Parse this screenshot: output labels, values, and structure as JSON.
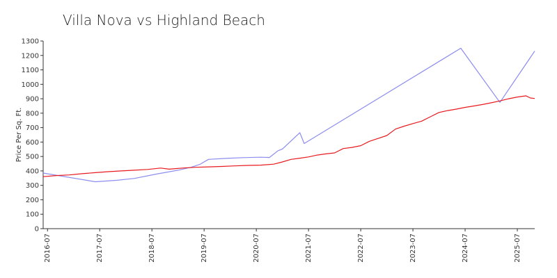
{
  "chart_data": {
    "type": "line",
    "title": "Villa Nova vs Highland Beach",
    "xlabel": "",
    "ylabel": "Price Per Sq. Ft.",
    "ylim": [
      0,
      1300
    ],
    "yticks": [
      0,
      100,
      200,
      300,
      400,
      500,
      600,
      700,
      800,
      900,
      1000,
      1100,
      1200,
      1300
    ],
    "xlim": [
      "2016-06",
      "2025-11"
    ],
    "xticks": [
      "2016-07",
      "2017-07",
      "2018-07",
      "2019-07",
      "2020-07",
      "2021-07",
      "2022-07",
      "2023-07",
      "2024-07",
      "2025-07"
    ],
    "grid": false,
    "legend": "none",
    "series": [
      {
        "color": "#8c8cf0",
        "points": [
          [
            "2016-06",
            385
          ],
          [
            "2017-06",
            325
          ],
          [
            "2017-11",
            335
          ],
          [
            "2018-03",
            348
          ],
          [
            "2018-08",
            378
          ],
          [
            "2019-01",
            405
          ],
          [
            "2019-04",
            425
          ],
          [
            "2019-06",
            445
          ],
          [
            "2019-08",
            480
          ],
          [
            "2019-12",
            487
          ],
          [
            "2020-04",
            492
          ],
          [
            "2020-08",
            495
          ],
          [
            "2020-10",
            493
          ],
          [
            "2020-12",
            540
          ],
          [
            "2021-01",
            552
          ],
          [
            "2021-05",
            665
          ],
          [
            "2021-06",
            590
          ],
          [
            "2024-06",
            1250
          ],
          [
            "2025-03",
            875
          ],
          [
            "2025-11",
            1230
          ]
        ]
      },
      {
        "color": "#e8191e",
        "points": [
          [
            "2016-06",
            360
          ],
          [
            "2016-09",
            368
          ],
          [
            "2016-12",
            372
          ],
          [
            "2017-03",
            381
          ],
          [
            "2017-06",
            388
          ],
          [
            "2017-09",
            395
          ],
          [
            "2017-12",
            400
          ],
          [
            "2018-03",
            405
          ],
          [
            "2018-06",
            410
          ],
          [
            "2018-09",
            420
          ],
          [
            "2018-11",
            412
          ],
          [
            "2019-02",
            420
          ],
          [
            "2019-05",
            425
          ],
          [
            "2019-08",
            428
          ],
          [
            "2019-11",
            431
          ],
          [
            "2020-02",
            435
          ],
          [
            "2020-05",
            438
          ],
          [
            "2020-08",
            440
          ],
          [
            "2020-11",
            447
          ],
          [
            "2021-01",
            462
          ],
          [
            "2021-03",
            480
          ],
          [
            "2021-05",
            488
          ],
          [
            "2021-07",
            497
          ],
          [
            "2021-09",
            510
          ],
          [
            "2021-11",
            518
          ],
          [
            "2022-01",
            525
          ],
          [
            "2022-03",
            555
          ],
          [
            "2022-05",
            563
          ],
          [
            "2022-07",
            575
          ],
          [
            "2022-09",
            605
          ],
          [
            "2022-11",
            625
          ],
          [
            "2023-01",
            645
          ],
          [
            "2023-03",
            690
          ],
          [
            "2023-05",
            710
          ],
          [
            "2023-07",
            728
          ],
          [
            "2023-09",
            745
          ],
          [
            "2023-11",
            775
          ],
          [
            "2024-01",
            805
          ],
          [
            "2024-03",
            818
          ],
          [
            "2024-05",
            828
          ],
          [
            "2024-07",
            840
          ],
          [
            "2024-09",
            850
          ],
          [
            "2024-11",
            860
          ],
          [
            "2025-01",
            872
          ],
          [
            "2025-03",
            885
          ],
          [
            "2025-05",
            900
          ],
          [
            "2025-07",
            912
          ],
          [
            "2025-09",
            920
          ],
          [
            "2025-10",
            905
          ],
          [
            "2025-11",
            902
          ]
        ]
      }
    ]
  }
}
